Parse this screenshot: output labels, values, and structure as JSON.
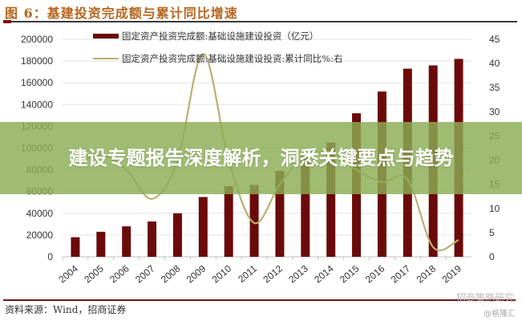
{
  "figure": {
    "title": "图 6：基建投资完成额与累计同比增速",
    "source": "资料来源：Wind，招商证券",
    "watermark_primary": "招商策略研究",
    "watermark_secondary": "@格隆汇"
  },
  "banner": {
    "text": "建设专题报告深度解析，洞悉关键要点与趋势"
  },
  "colors": {
    "bar": "#6b0a0a",
    "line": "#b9b072",
    "title": "#b5651d",
    "banner": "#8bad54"
  },
  "chart_data": {
    "type": "bar+line",
    "title": "基建投资完成额与累计同比增速",
    "categories": [
      "2004",
      "2005",
      "2006",
      "2007",
      "2008",
      "2009",
      "2010",
      "2011",
      "2012",
      "2013",
      "2014",
      "2015",
      "2016",
      "2017",
      "2018",
      "2019"
    ],
    "series": [
      {
        "name": "固定资产投资完成额:基础设施建设投资（亿元）",
        "type": "bar",
        "axis": "left",
        "values": [
          18000,
          23000,
          28000,
          32500,
          40000,
          55000,
          65000,
          66000,
          79000,
          93000,
          105000,
          132000,
          152000,
          173000,
          176000,
          182000
        ]
      },
      {
        "name": "固定资产投资完成额:基础设施建设投资:累计同比%:右",
        "type": "line",
        "axis": "right",
        "values": [
          19,
          21,
          18,
          12,
          20,
          42,
          20,
          7,
          15,
          21,
          21.5,
          18,
          15.5,
          16,
          2,
          3.5
        ]
      }
    ],
    "y_left": {
      "ticks": [
        0,
        20000,
        40000,
        60000,
        80000,
        100000,
        120000,
        140000,
        160000,
        180000,
        200000
      ],
      "ylim": [
        0,
        200000
      ]
    },
    "y_right": {
      "ticks": [
        0,
        5,
        10,
        15,
        20,
        25,
        30,
        35,
        40,
        45
      ],
      "ylim": [
        0,
        45
      ]
    },
    "xlabel": "",
    "ylabel": "",
    "grid": true,
    "legend_position": "top"
  }
}
